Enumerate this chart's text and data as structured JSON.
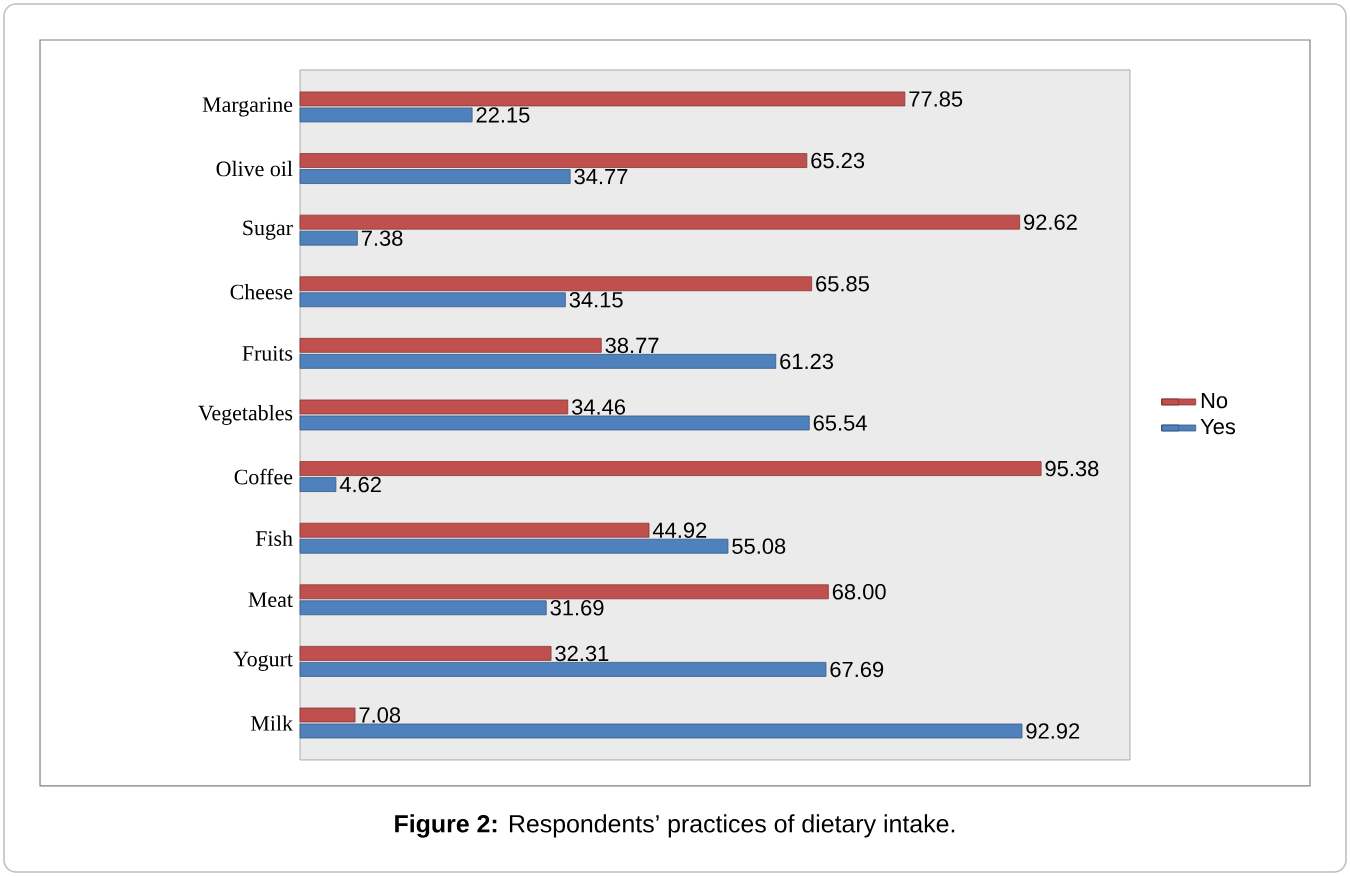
{
  "chart_data": {
    "type": "bar",
    "orientation": "horizontal",
    "categories": [
      "Margarine",
      "Olive oil",
      "Sugar",
      "Cheese",
      "Fruits",
      "Vegetables",
      "Coffee",
      "Fish",
      "Meat",
      "Yogurt",
      "Milk"
    ],
    "series": [
      {
        "name": "No",
        "color": "#c0504d",
        "values": [
          77.85,
          65.23,
          92.62,
          65.85,
          38.77,
          34.46,
          95.38,
          44.92,
          68.0,
          32.31,
          7.08
        ],
        "value_labels": [
          "77.85",
          "65.23",
          "92.62",
          "65.85",
          "38.77",
          "34.46",
          "95.38",
          "44.92",
          "68.00",
          "32.31",
          "7.08"
        ]
      },
      {
        "name": "Yes",
        "color": "#4f81bd",
        "values": [
          22.15,
          34.77,
          7.38,
          34.15,
          61.23,
          65.54,
          4.62,
          55.08,
          31.69,
          67.69,
          92.92
        ],
        "value_labels": [
          "22.15",
          "34.77",
          "7.38",
          "34.15",
          "61.23",
          "65.54",
          "4.62",
          "55.08",
          "31.69",
          "67.69",
          "92.92"
        ]
      }
    ],
    "legend": "right",
    "annotations": [
      "**Figure 2:** Respondents’ practices of dietary intake."
    ]
  }
}
